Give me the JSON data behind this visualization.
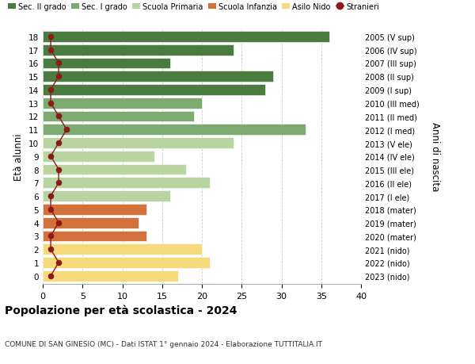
{
  "ages": [
    18,
    17,
    16,
    15,
    14,
    13,
    12,
    11,
    10,
    9,
    8,
    7,
    6,
    5,
    4,
    3,
    2,
    1,
    0
  ],
  "values": [
    36,
    24,
    16,
    29,
    28,
    20,
    19,
    33,
    24,
    14,
    18,
    21,
    16,
    13,
    12,
    13,
    20,
    21,
    17
  ],
  "bar_colors": [
    "#4a7c3f",
    "#4a7c3f",
    "#4a7c3f",
    "#4a7c3f",
    "#4a7c3f",
    "#7daa6e",
    "#7daa6e",
    "#7daa6e",
    "#b8d4a0",
    "#b8d4a0",
    "#b8d4a0",
    "#b8d4a0",
    "#b8d4a0",
    "#d2713a",
    "#d2713a",
    "#d2713a",
    "#f5d97a",
    "#f5d97a",
    "#f5d97a"
  ],
  "stranieri_values": [
    1,
    1,
    2,
    2,
    1,
    1,
    2,
    3,
    2,
    1,
    2,
    2,
    1,
    1,
    2,
    1,
    1,
    2,
    1
  ],
  "stranieri_color": "#8b1a1a",
  "right_labels": [
    "2005 (V sup)",
    "2006 (IV sup)",
    "2007 (III sup)",
    "2008 (II sup)",
    "2009 (I sup)",
    "2010 (III med)",
    "2011 (II med)",
    "2012 (I med)",
    "2013 (V ele)",
    "2014 (IV ele)",
    "2015 (III ele)",
    "2016 (II ele)",
    "2017 (I ele)",
    "2018 (mater)",
    "2019 (mater)",
    "2020 (mater)",
    "2021 (nido)",
    "2022 (nido)",
    "2023 (nido)"
  ],
  "ylabel": "Età alunni",
  "right_axis_label": "Anni di nascita",
  "title": "Popolazione per età scolastica - 2024",
  "subtitle": "COMUNE DI SAN GINESIO (MC) - Dati ISTAT 1° gennaio 2024 - Elaborazione TUTTITALIA.IT",
  "xlim": [
    0,
    40
  ],
  "xticks": [
    0,
    5,
    10,
    15,
    20,
    25,
    30,
    35,
    40
  ],
  "legend_labels": [
    "Sec. II grado",
    "Sec. I grado",
    "Scuola Primaria",
    "Scuola Infanzia",
    "Asilo Nido",
    "Stranieri"
  ],
  "legend_colors": [
    "#4a7c3f",
    "#7daa6e",
    "#b8d4a0",
    "#d2713a",
    "#f5d97a",
    "#8b1a1a"
  ],
  "bg_color": "#ffffff",
  "grid_color": "#cccccc"
}
